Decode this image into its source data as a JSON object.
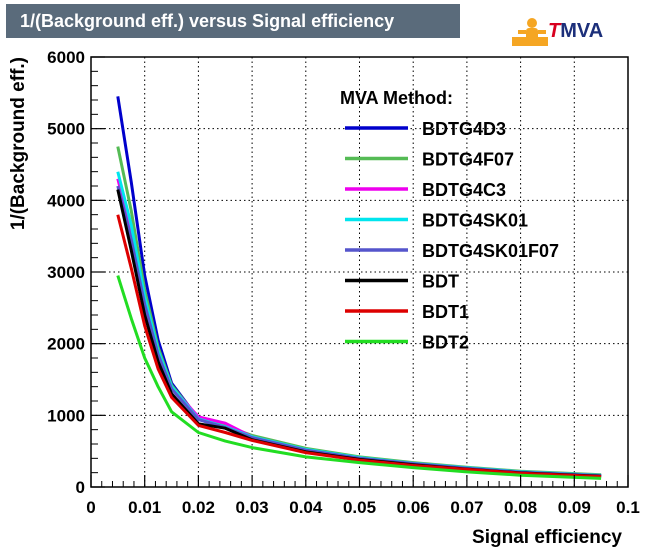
{
  "header": {
    "title": "1/(Background eff.) versus Signal efficiency",
    "logo_t": "T",
    "logo_mva": "MVA"
  },
  "chart_data": {
    "type": "line",
    "title": "1/(Background eff.) versus Signal efficiency",
    "xlabel": "Signal efficiency",
    "ylabel": "1/(Background eff.)",
    "xlim": [
      0,
      0.1
    ],
    "ylim": [
      0,
      6000
    ],
    "xticks": [
      "0",
      "0.01",
      "0.02",
      "0.03",
      "0.04",
      "0.05",
      "0.06",
      "0.07",
      "0.08",
      "0.09",
      "0.1"
    ],
    "yticks": [
      "0",
      "1000",
      "2000",
      "3000",
      "4000",
      "5000",
      "6000"
    ],
    "grid": true,
    "legend_title": "MVA Method:",
    "legend_position": "top-right",
    "x": [
      0.005,
      0.0075,
      0.01,
      0.0125,
      0.015,
      0.02,
      0.025,
      0.03,
      0.04,
      0.05,
      0.06,
      0.07,
      0.08,
      0.095
    ],
    "series": [
      {
        "name": "BDTG4D3",
        "color": "#0000cc",
        "values": [
          5450,
          4250,
          2950,
          2050,
          1450,
          950,
          820,
          690,
          510,
          400,
          320,
          260,
          205,
          155
        ]
      },
      {
        "name": "BDTG4F07",
        "color": "#55bb55",
        "values": [
          4750,
          3850,
          2750,
          1950,
          1420,
          960,
          850,
          720,
          540,
          420,
          340,
          275,
          220,
          170
        ]
      },
      {
        "name": "BDTG4C3",
        "color": "#ee00ee",
        "values": [
          4300,
          3550,
          2600,
          1880,
          1390,
          980,
          890,
          700,
          520,
          405,
          330,
          265,
          210,
          160
        ]
      },
      {
        "name": "BDTG4SK01",
        "color": "#00e5ee",
        "values": [
          4400,
          3650,
          2650,
          1900,
          1400,
          950,
          840,
          700,
          525,
          410,
          330,
          268,
          212,
          162
        ]
      },
      {
        "name": "BDTG4SK01F07",
        "color": "#5555cc",
        "values": [
          4200,
          3450,
          2550,
          1850,
          1370,
          940,
          830,
          690,
          515,
          402,
          325,
          262,
          207,
          157
        ]
      },
      {
        "name": "BDT",
        "color": "#000000",
        "values": [
          4150,
          3300,
          2400,
          1750,
          1300,
          880,
          820,
          660,
          490,
          385,
          310,
          250,
          197,
          150
        ]
      },
      {
        "name": "BDT1",
        "color": "#dd0000",
        "values": [
          3800,
          3050,
          2250,
          1650,
          1250,
          860,
          760,
          650,
          480,
          375,
          300,
          245,
          193,
          145
        ]
      },
      {
        "name": "BDT2",
        "color": "#22dd22",
        "values": [
          2950,
          2350,
          1800,
          1400,
          1050,
          760,
          640,
          550,
          420,
          340,
          270,
          210,
          165,
          120
        ]
      }
    ]
  }
}
